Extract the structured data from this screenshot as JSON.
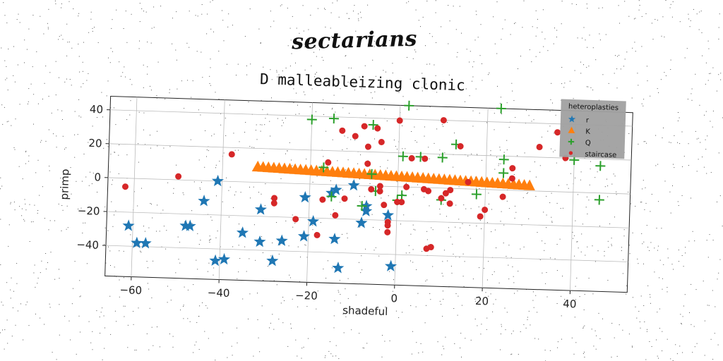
{
  "page": {
    "title": "sectarians"
  },
  "colors": {
    "r": "#1f77b4",
    "K": "#ff7f0e",
    "Q": "#2ca02c",
    "staircase": "#d62728",
    "grid": "#bbbbbb",
    "legend_bg": "#a0a0a0"
  },
  "chart_data": {
    "type": "scatter",
    "title": "D malleableizing clonic",
    "xlabel": "shadeful",
    "ylabel": "primp",
    "xlim": [
      -66,
      53
    ],
    "ylim": [
      -58,
      48
    ],
    "xticks": [
      -60,
      -40,
      -20,
      0,
      20,
      40
    ],
    "yticks": [
      -40,
      -20,
      0,
      20,
      40
    ],
    "xtick_labels": [
      "−60",
      "−40",
      "−20",
      "0",
      "20",
      "40"
    ],
    "ytick_labels": [
      "−40",
      "−20",
      "0",
      "20",
      "40"
    ],
    "grid": true,
    "legend": {
      "title": "heteroplasties",
      "position": "top-right"
    },
    "series": [
      {
        "name": "r",
        "marker": "star",
        "color": "#1f77b4",
        "points": [
          [
            -61,
            -28
          ],
          [
            -59,
            -38
          ],
          [
            -57,
            -38
          ],
          [
            -48,
            -27
          ],
          [
            -47,
            -27
          ],
          [
            -44,
            -12
          ],
          [
            -41,
            0
          ],
          [
            -41,
            -47
          ],
          [
            -39,
            -46
          ],
          [
            -35,
            -30
          ],
          [
            -31,
            -35
          ],
          [
            -31,
            -16
          ],
          [
            -28,
            -46
          ],
          [
            -26,
            -34
          ],
          [
            -21,
            -31
          ],
          [
            -21,
            -8
          ],
          [
            -19,
            -22
          ],
          [
            -15,
            -5
          ],
          [
            -14,
            -3
          ],
          [
            -14,
            -32
          ],
          [
            -13,
            -49
          ],
          [
            -10,
            0
          ],
          [
            -8,
            -22
          ],
          [
            -7,
            -15
          ],
          [
            -7,
            -12
          ],
          [
            -2,
            -17
          ],
          [
            -1,
            -47
          ]
        ]
      },
      {
        "name": "K",
        "marker": "triangle",
        "color": "#ff7f0e",
        "line": {
          "x_start": -32,
          "x_end": 30,
          "y_start": 9,
          "y_end": 3,
          "count": 52
        }
      },
      {
        "name": "Q",
        "marker": "plus",
        "color": "#2ca02c",
        "points": [
          [
            2,
            48
          ],
          [
            23,
            48
          ],
          [
            -20,
            38
          ],
          [
            -15,
            39
          ],
          [
            -6,
            36
          ],
          [
            -17,
            10
          ],
          [
            13,
            26
          ],
          [
            1,
            18
          ],
          [
            5,
            18
          ],
          [
            10,
            18
          ],
          [
            24,
            18
          ],
          [
            24,
            10
          ],
          [
            -6,
            7
          ],
          [
            -5,
            -3
          ],
          [
            1,
            -5
          ],
          [
            18,
            -3
          ],
          [
            -15,
            -7
          ],
          [
            0,
            -8
          ],
          [
            40,
            19
          ],
          [
            46,
            16
          ],
          [
            46,
            -4
          ],
          [
            10,
            -7
          ],
          [
            -8,
            -12
          ]
        ]
      },
      {
        "name": "staircase",
        "marker": "circle",
        "color": "#d62728",
        "points": [
          [
            -62,
            -5
          ],
          [
            -50,
            2
          ],
          [
            -38,
            16
          ],
          [
            -28,
            -9
          ],
          [
            -28,
            -12
          ],
          [
            -23,
            -21
          ],
          [
            -16,
            13
          ],
          [
            -17,
            -9
          ],
          [
            -18,
            -30
          ],
          [
            -14,
            -18
          ],
          [
            -13,
            32
          ],
          [
            -12,
            -8
          ],
          [
            -10,
            29
          ],
          [
            -8,
            35
          ],
          [
            -7,
            23
          ],
          [
            -7,
            13
          ],
          [
            -6,
            -2
          ],
          [
            -5,
            34
          ],
          [
            -4,
            26
          ],
          [
            -4,
            0
          ],
          [
            -4,
            -3
          ],
          [
            -3,
            -11
          ],
          [
            -2,
            -21
          ],
          [
            -2,
            -23
          ],
          [
            -2,
            -27
          ],
          [
            0,
            39
          ],
          [
            0,
            -9
          ],
          [
            1,
            -9
          ],
          [
            2,
            0
          ],
          [
            3,
            17
          ],
          [
            6,
            17
          ],
          [
            6,
            -1
          ],
          [
            7,
            -36
          ],
          [
            8,
            -35
          ],
          [
            7,
            -2
          ],
          [
            10,
            40
          ],
          [
            10,
            -6
          ],
          [
            11,
            -3
          ],
          [
            12,
            -9
          ],
          [
            12,
            -1
          ],
          [
            14,
            25
          ],
          [
            16,
            4
          ],
          [
            19,
            -16
          ],
          [
            20,
            -12
          ],
          [
            24,
            -4
          ],
          [
            26,
            13
          ],
          [
            26,
            7
          ],
          [
            32,
            26
          ],
          [
            36,
            35
          ],
          [
            38,
            20
          ]
        ]
      }
    ]
  }
}
